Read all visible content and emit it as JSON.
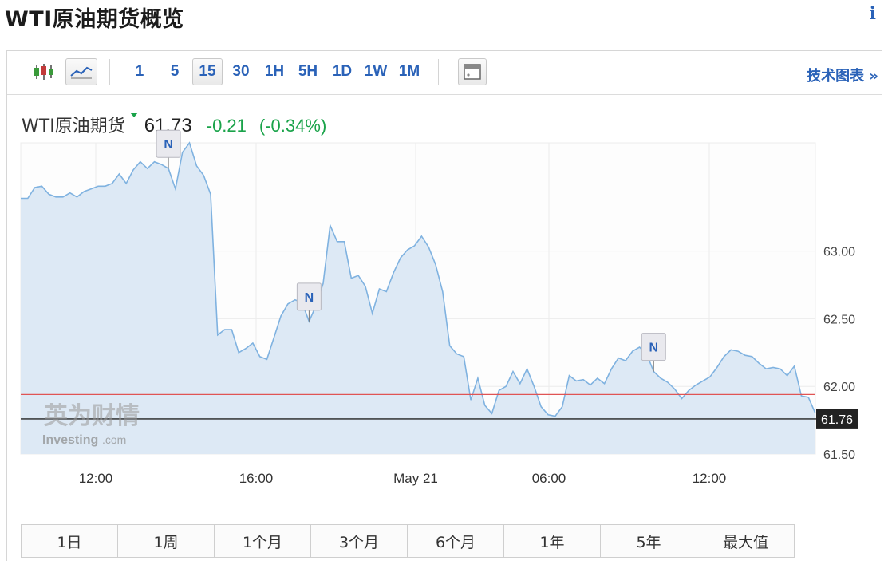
{
  "page": {
    "title": "WTI原油期货概览",
    "info_icon": "info-icon"
  },
  "toolbar": {
    "chart_type_icons": [
      "candlestick-icon",
      "line-chart-icon"
    ],
    "intervals": [
      "1",
      "5",
      "15",
      "30",
      "1H",
      "5H",
      "1D",
      "1W",
      "1M"
    ],
    "active_interval": "15",
    "extra_icon": "window-icon",
    "tech_chart_label": "技术图表 »"
  },
  "quote": {
    "name": "WTI原油期货",
    "last": "61.73",
    "change": "-0.21",
    "change_pct": "(-0.34%)",
    "change_color": "#1aa34a"
  },
  "watermark": {
    "cn": "英为财情",
    "en": "Investing",
    "en_suffix": ".com"
  },
  "chart_data": {
    "type": "area",
    "title": "",
    "xlabel": "",
    "ylabel": "",
    "x_ticks": [
      "12:00",
      "16:00",
      "May 21",
      "06:00",
      "12:00"
    ],
    "y_ticks": [
      "63.00",
      "62.50",
      "62.00",
      "61.50"
    ],
    "ylim": [
      61.5,
      63.8
    ],
    "grid": true,
    "colors": {
      "line": "#7fb2e0",
      "fill": "#dde9f5",
      "reference": "#e05454",
      "price_line": "#222222"
    },
    "series": [
      {
        "values": [
          63.39,
          63.39,
          63.47,
          63.48,
          63.42,
          63.4,
          63.4,
          63.43,
          63.4,
          63.44,
          63.46,
          63.48,
          63.48,
          63.5,
          63.57,
          63.5,
          63.6,
          63.66,
          63.61,
          63.66,
          63.64,
          63.61,
          63.46,
          63.73,
          63.8,
          63.63,
          63.56,
          63.42,
          62.38,
          62.42,
          62.42,
          62.25,
          62.28,
          62.32,
          62.22,
          62.2,
          62.36,
          62.52,
          62.61,
          62.64,
          62.62,
          62.48,
          62.6,
          62.76,
          63.19,
          63.07,
          63.07,
          62.8,
          62.82,
          62.74,
          62.54,
          62.72,
          62.7,
          62.84,
          62.95,
          63.01,
          63.04,
          63.11,
          63.03,
          62.9,
          62.7,
          62.3,
          62.24,
          62.22,
          61.9,
          62.06,
          61.86,
          61.8,
          61.97,
          62.0,
          62.11,
          62.02,
          62.13,
          62.0,
          61.85,
          61.79,
          61.78,
          61.85,
          62.08,
          62.04,
          62.05,
          62.01,
          62.06,
          62.02,
          62.13,
          62.21,
          62.19,
          62.26,
          62.29,
          62.24,
          62.11,
          62.06,
          62.03,
          61.98,
          61.91,
          61.97,
          62.01,
          62.04,
          62.07,
          62.14,
          62.22,
          62.27,
          62.26,
          62.23,
          62.22,
          62.17,
          62.13,
          62.14,
          62.13,
          62.08,
          62.15,
          61.93,
          61.92,
          61.8
        ]
      }
    ],
    "reference_line": 61.94,
    "current_price_label": "61.76",
    "current_price": 61.76,
    "news_markers": [
      {
        "index": 21,
        "label": "N"
      },
      {
        "index": 41,
        "label": "N"
      },
      {
        "index": 90,
        "label": "N"
      }
    ]
  },
  "ranges": [
    "1日",
    "1周",
    "1个月",
    "3个月",
    "6个月",
    "1年",
    "5年",
    "最大值"
  ]
}
